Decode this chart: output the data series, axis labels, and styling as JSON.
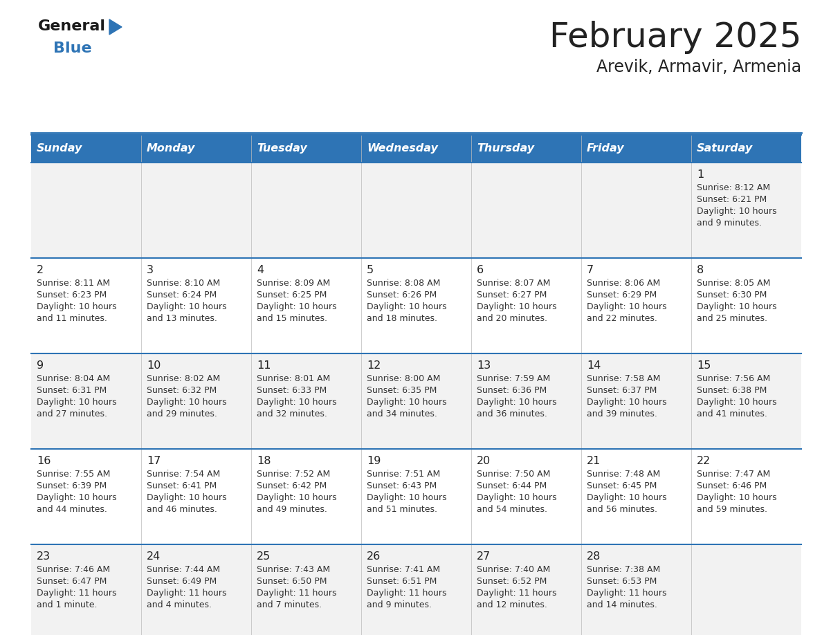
{
  "title": "February 2025",
  "subtitle": "Arevik, Armavir, Armenia",
  "days_of_week": [
    "Sunday",
    "Monday",
    "Tuesday",
    "Wednesday",
    "Thursday",
    "Friday",
    "Saturday"
  ],
  "header_bg": "#2E74B5",
  "header_text_color": "#FFFFFF",
  "row_bg_odd": "#F2F2F2",
  "row_bg_even": "#FFFFFF",
  "cell_border_color": "#2E74B5",
  "title_color": "#222222",
  "subtitle_color": "#222222",
  "day_number_color": "#222222",
  "cell_text_color": "#333333",
  "calendar_data": [
    [
      null,
      null,
      null,
      null,
      null,
      null,
      {
        "day": 1,
        "sunrise": "8:12 AM",
        "sunset": "6:21 PM",
        "daylight": "10 hours\nand 9 minutes."
      }
    ],
    [
      {
        "day": 2,
        "sunrise": "8:11 AM",
        "sunset": "6:23 PM",
        "daylight": "10 hours\nand 11 minutes."
      },
      {
        "day": 3,
        "sunrise": "8:10 AM",
        "sunset": "6:24 PM",
        "daylight": "10 hours\nand 13 minutes."
      },
      {
        "day": 4,
        "sunrise": "8:09 AM",
        "sunset": "6:25 PM",
        "daylight": "10 hours\nand 15 minutes."
      },
      {
        "day": 5,
        "sunrise": "8:08 AM",
        "sunset": "6:26 PM",
        "daylight": "10 hours\nand 18 minutes."
      },
      {
        "day": 6,
        "sunrise": "8:07 AM",
        "sunset": "6:27 PM",
        "daylight": "10 hours\nand 20 minutes."
      },
      {
        "day": 7,
        "sunrise": "8:06 AM",
        "sunset": "6:29 PM",
        "daylight": "10 hours\nand 22 minutes."
      },
      {
        "day": 8,
        "sunrise": "8:05 AM",
        "sunset": "6:30 PM",
        "daylight": "10 hours\nand 25 minutes."
      }
    ],
    [
      {
        "day": 9,
        "sunrise": "8:04 AM",
        "sunset": "6:31 PM",
        "daylight": "10 hours\nand 27 minutes."
      },
      {
        "day": 10,
        "sunrise": "8:02 AM",
        "sunset": "6:32 PM",
        "daylight": "10 hours\nand 29 minutes."
      },
      {
        "day": 11,
        "sunrise": "8:01 AM",
        "sunset": "6:33 PM",
        "daylight": "10 hours\nand 32 minutes."
      },
      {
        "day": 12,
        "sunrise": "8:00 AM",
        "sunset": "6:35 PM",
        "daylight": "10 hours\nand 34 minutes."
      },
      {
        "day": 13,
        "sunrise": "7:59 AM",
        "sunset": "6:36 PM",
        "daylight": "10 hours\nand 36 minutes."
      },
      {
        "day": 14,
        "sunrise": "7:58 AM",
        "sunset": "6:37 PM",
        "daylight": "10 hours\nand 39 minutes."
      },
      {
        "day": 15,
        "sunrise": "7:56 AM",
        "sunset": "6:38 PM",
        "daylight": "10 hours\nand 41 minutes."
      }
    ],
    [
      {
        "day": 16,
        "sunrise": "7:55 AM",
        "sunset": "6:39 PM",
        "daylight": "10 hours\nand 44 minutes."
      },
      {
        "day": 17,
        "sunrise": "7:54 AM",
        "sunset": "6:41 PM",
        "daylight": "10 hours\nand 46 minutes."
      },
      {
        "day": 18,
        "sunrise": "7:52 AM",
        "sunset": "6:42 PM",
        "daylight": "10 hours\nand 49 minutes."
      },
      {
        "day": 19,
        "sunrise": "7:51 AM",
        "sunset": "6:43 PM",
        "daylight": "10 hours\nand 51 minutes."
      },
      {
        "day": 20,
        "sunrise": "7:50 AM",
        "sunset": "6:44 PM",
        "daylight": "10 hours\nand 54 minutes."
      },
      {
        "day": 21,
        "sunrise": "7:48 AM",
        "sunset": "6:45 PM",
        "daylight": "10 hours\nand 56 minutes."
      },
      {
        "day": 22,
        "sunrise": "7:47 AM",
        "sunset": "6:46 PM",
        "daylight": "10 hours\nand 59 minutes."
      }
    ],
    [
      {
        "day": 23,
        "sunrise": "7:46 AM",
        "sunset": "6:47 PM",
        "daylight": "11 hours\nand 1 minute."
      },
      {
        "day": 24,
        "sunrise": "7:44 AM",
        "sunset": "6:49 PM",
        "daylight": "11 hours\nand 4 minutes."
      },
      {
        "day": 25,
        "sunrise": "7:43 AM",
        "sunset": "6:50 PM",
        "daylight": "11 hours\nand 7 minutes."
      },
      {
        "day": 26,
        "sunrise": "7:41 AM",
        "sunset": "6:51 PM",
        "daylight": "11 hours\nand 9 minutes."
      },
      {
        "day": 27,
        "sunrise": "7:40 AM",
        "sunset": "6:52 PM",
        "daylight": "11 hours\nand 12 minutes."
      },
      {
        "day": 28,
        "sunrise": "7:38 AM",
        "sunset": "6:53 PM",
        "daylight": "11 hours\nand 14 minutes."
      },
      null
    ]
  ]
}
